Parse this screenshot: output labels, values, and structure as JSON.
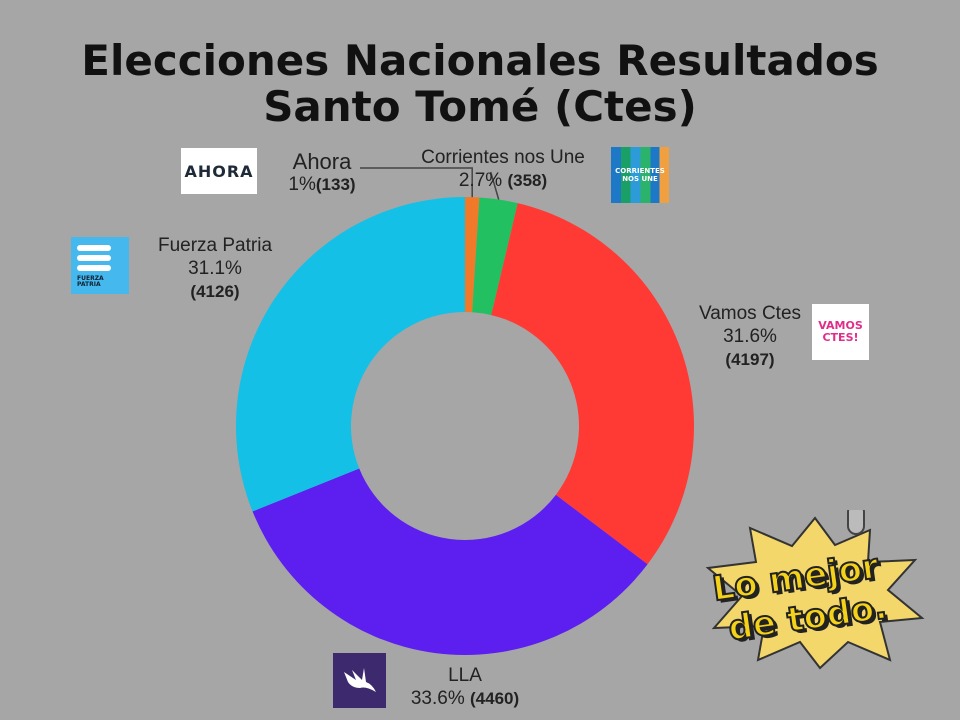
{
  "title_line1": "Elecciones Nacionales Resultados",
  "title_line2": "Santo Tomé (Ctes)",
  "chart_data": {
    "type": "pie",
    "donut": true,
    "title": "Elecciones Nacionales Resultados Santo Tomé (Ctes)",
    "slices": [
      {
        "name": "Ahora",
        "percent_label": "1%",
        "votes_label": "(133)",
        "value": 133,
        "color": "#f07a2a"
      },
      {
        "name": "Corrientes nos Une",
        "percent_label": "2.7%",
        "votes_label": "(358)",
        "value": 358,
        "color": "#22c061"
      },
      {
        "name": "Vamos Ctes",
        "percent_label": "31.6%",
        "votes_label": "(4197)",
        "value": 4197,
        "color": "#ff3a34"
      },
      {
        "name": "LLA",
        "percent_label": "33.6%",
        "votes_label": "(4460)",
        "value": 4460,
        "color": "#5c1ff0"
      },
      {
        "name": "Fuerza Patria",
        "percent_label": "31.1%",
        "votes_label": "(4126)",
        "value": 4126,
        "color": "#14c0e6"
      }
    ]
  },
  "logos": {
    "ahora": "AHORA",
    "corrientes": "CORRIENTES NOS UNE",
    "fuerza_patria": "FUERZA PATRIA",
    "vamos": "VAMOS CTES!",
    "lla_icon": "eagle-icon"
  },
  "stamp": {
    "line1": "Lo mejor",
    "line2": "de todo."
  }
}
